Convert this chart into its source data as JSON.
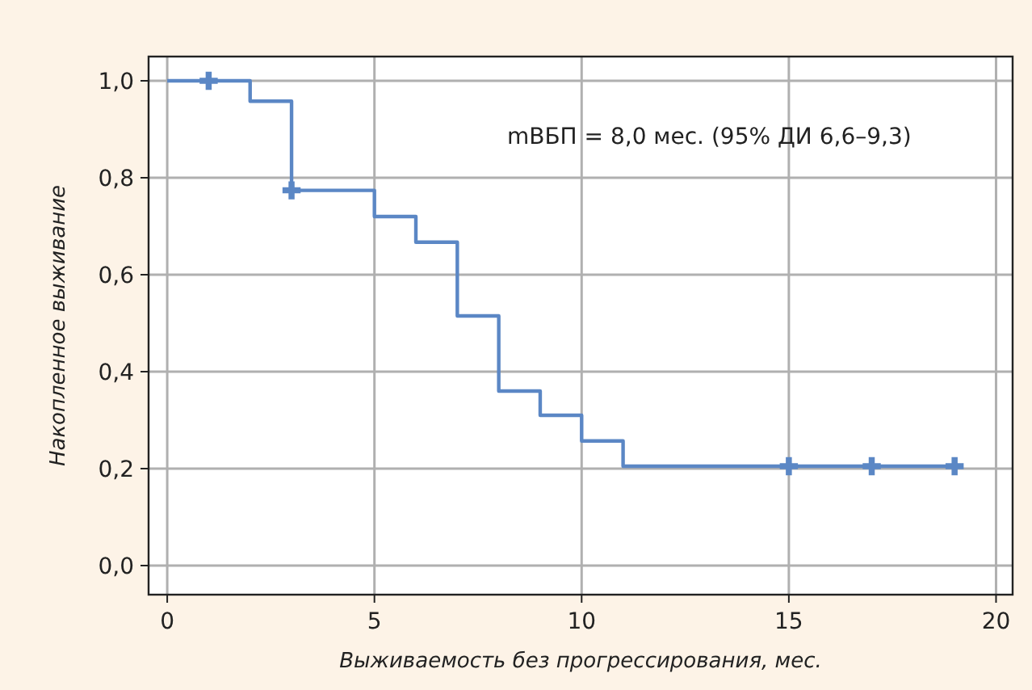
{
  "chart_data": {
    "type": "step",
    "xlabel": "Выживаемость без прогрессирования, мес.",
    "ylabel": "Накопленное выживание",
    "xlim": [
      -0.45,
      20.4
    ],
    "ylim": [
      -0.06,
      1.05
    ],
    "xticks": [
      0,
      5,
      10,
      15,
      20
    ],
    "yticks": [
      {
        "value": 0,
        "label": "0,0"
      },
      {
        "value": 0.2,
        "label": "0,2"
      },
      {
        "value": 0.4,
        "label": "0,4"
      },
      {
        "value": 0.6,
        "label": "0,6"
      },
      {
        "value": 0.8,
        "label": "0,8"
      },
      {
        "value": 1,
        "label": "1,0"
      }
    ],
    "grid": true,
    "annotations": [
      "mВБП = 8,0 мес. (95% ДИ 6,6–9,3)"
    ],
    "series": [
      {
        "color": "#5b87c5",
        "x": [
          0,
          2,
          3,
          5,
          6,
          7,
          8,
          9,
          10,
          11,
          19
        ],
        "values": [
          1,
          0.958,
          0.774,
          0.72,
          0.667,
          0.515,
          0.36,
          0.31,
          0.257,
          0.205,
          0.205
        ]
      },
      {
        "type": "scatter",
        "color": "#5b87c5",
        "marker": "cross",
        "x": [
          1,
          3,
          15,
          17,
          19
        ],
        "values": [
          1,
          0.774,
          0.205,
          0.205,
          0.205
        ]
      }
    ]
  }
}
